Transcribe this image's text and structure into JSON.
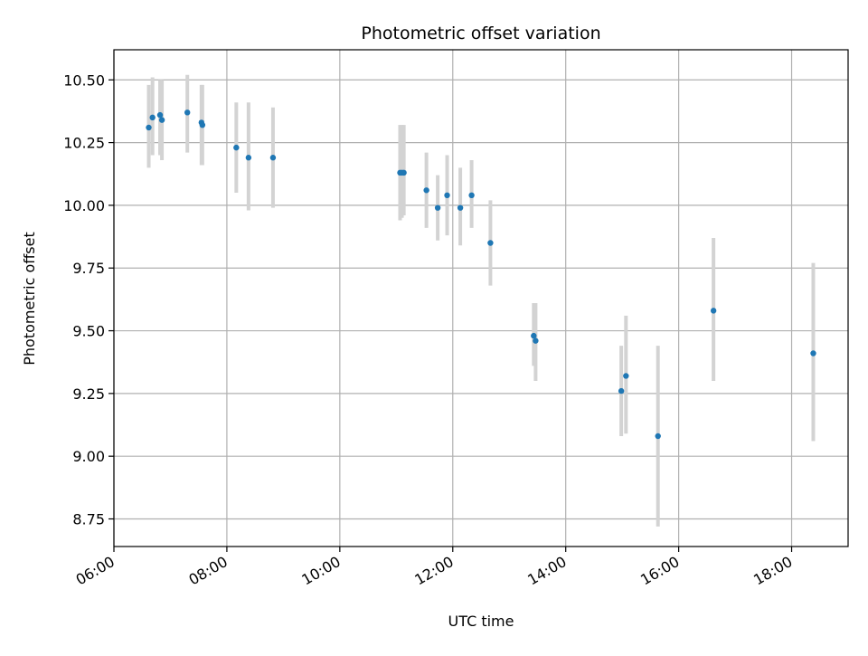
{
  "chart_data": {
    "type": "scatter",
    "title": "Photometric offset variation",
    "xlabel": "UTC time",
    "ylabel": "Photometric offset",
    "x_tick_labels": [
      "06:00",
      "08:00",
      "10:00",
      "12:00",
      "14:00",
      "16:00",
      "18:00"
    ],
    "x_ticks": [
      "06:00",
      "08:00",
      "10:00",
      "12:00",
      "14:00",
      "16:00",
      "18:00"
    ],
    "y_tick_labels": [
      "8.75",
      "9.00",
      "9.25",
      "9.50",
      "9.75",
      "10.00",
      "10.25",
      "10.50"
    ],
    "y_ticks": [
      8.75,
      9.0,
      9.25,
      9.5,
      9.75,
      10.0,
      10.25,
      10.5
    ],
    "xlim": [
      "06:00",
      "19:00"
    ],
    "ylim": [
      8.64,
      10.62
    ],
    "grid": true,
    "colors": {
      "point": "#1f77b4",
      "errorbar": "#d3d3d3",
      "grid": "#b0b0b0"
    },
    "points": [
      {
        "x": "06:37",
        "y": 10.31,
        "lo": 10.15,
        "hi": 10.48
      },
      {
        "x": "06:41",
        "y": 10.35,
        "lo": 10.2,
        "hi": 10.51
      },
      {
        "x": "06:49",
        "y": 10.36,
        "lo": 10.2,
        "hi": 10.5
      },
      {
        "x": "06:51",
        "y": 10.34,
        "lo": 10.18,
        "hi": 10.5
      },
      {
        "x": "07:18",
        "y": 10.37,
        "lo": 10.21,
        "hi": 10.52
      },
      {
        "x": "07:33",
        "y": 10.33,
        "lo": 10.16,
        "hi": 10.48
      },
      {
        "x": "07:34",
        "y": 10.32,
        "lo": 10.16,
        "hi": 10.48
      },
      {
        "x": "08:10",
        "y": 10.23,
        "lo": 10.05,
        "hi": 10.41
      },
      {
        "x": "08:23",
        "y": 10.19,
        "lo": 9.98,
        "hi": 10.41
      },
      {
        "x": "08:49",
        "y": 10.19,
        "lo": 9.99,
        "hi": 10.39
      },
      {
        "x": "11:04",
        "y": 10.13,
        "lo": 9.94,
        "hi": 10.32
      },
      {
        "x": "11:06",
        "y": 10.13,
        "lo": 9.95,
        "hi": 10.32
      },
      {
        "x": "11:08",
        "y": 10.13,
        "lo": 9.96,
        "hi": 10.32
      },
      {
        "x": "11:32",
        "y": 10.06,
        "lo": 9.91,
        "hi": 10.21
      },
      {
        "x": "11:44",
        "y": 9.99,
        "lo": 9.86,
        "hi": 10.12
      },
      {
        "x": "11:54",
        "y": 10.04,
        "lo": 9.88,
        "hi": 10.2
      },
      {
        "x": "12:08",
        "y": 9.99,
        "lo": 9.84,
        "hi": 10.15
      },
      {
        "x": "12:20",
        "y": 10.04,
        "lo": 9.91,
        "hi": 10.18
      },
      {
        "x": "12:40",
        "y": 9.85,
        "lo": 9.68,
        "hi": 10.02
      },
      {
        "x": "13:26",
        "y": 9.48,
        "lo": 9.36,
        "hi": 9.61
      },
      {
        "x": "13:28",
        "y": 9.46,
        "lo": 9.3,
        "hi": 9.61
      },
      {
        "x": "14:59",
        "y": 9.26,
        "lo": 9.08,
        "hi": 9.44
      },
      {
        "x": "15:04",
        "y": 9.32,
        "lo": 9.09,
        "hi": 9.56
      },
      {
        "x": "15:38",
        "y": 9.08,
        "lo": 8.72,
        "hi": 9.44
      },
      {
        "x": "16:37",
        "y": 9.58,
        "lo": 9.3,
        "hi": 9.87
      },
      {
        "x": "18:23",
        "y": 9.41,
        "lo": 9.06,
        "hi": 9.77
      }
    ]
  }
}
